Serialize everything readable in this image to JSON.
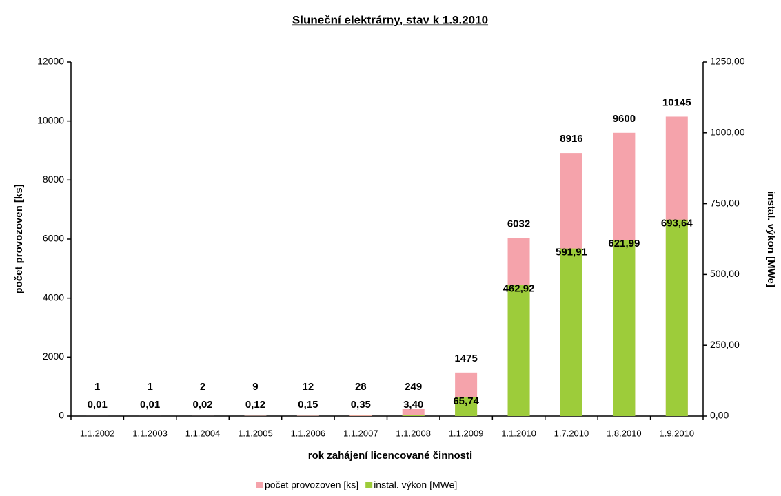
{
  "chart_data": {
    "type": "bar",
    "title": "Sluneční elektrárny, stav k 1.9.2010",
    "x_label": "rok zahájení licencované činnosti",
    "y_label": "počet provozoven [ks]",
    "y2_label": "instal. výkon [MWe]",
    "categories": [
      "1.1.2002",
      "1.1.2003",
      "1.1.2004",
      "1.1.2005",
      "1.1.2006",
      "1.1.2007",
      "1.1.2008",
      "1.1.2009",
      "1.1.2010",
      "1.7.2010",
      "1.8.2010",
      "1.9.2010"
    ],
    "series": [
      {
        "name": "počet provozoven [ks]",
        "color": "#f5a3ab",
        "axis": "y",
        "values": [
          1,
          1,
          2,
          9,
          12,
          28,
          249,
          1475,
          6032,
          8916,
          9600,
          10145
        ]
      },
      {
        "name": "instal. výkon [MWe]",
        "color": "#9dcc3a",
        "axis": "y2",
        "values": [
          0.01,
          0.01,
          0.02,
          0.12,
          0.15,
          0.35,
          3.4,
          65.74,
          462.92,
          591.91,
          621.99,
          693.64
        ],
        "value_labels": [
          "0,01",
          "0,01",
          "0,02",
          "0,12",
          "0,15",
          "0,35",
          "3,40",
          "65,74",
          "462,92",
          "591,91",
          "621,99",
          "693,64"
        ]
      }
    ],
    "ylim": [
      0,
      12000
    ],
    "yticks": [
      0,
      2000,
      4000,
      6000,
      8000,
      10000,
      12000
    ],
    "y2lim": [
      0,
      1250
    ],
    "y2ticks": [
      {
        "value": 0,
        "label": "0,00"
      },
      {
        "value": 250,
        "label": "250,00"
      },
      {
        "value": 500,
        "label": "500,00"
      },
      {
        "value": 750,
        "label": "750,00"
      },
      {
        "value": 1000,
        "label": "1000,00"
      },
      {
        "value": 1250,
        "label": "1250,00"
      }
    ],
    "legend": "bottom",
    "grid": false
  }
}
